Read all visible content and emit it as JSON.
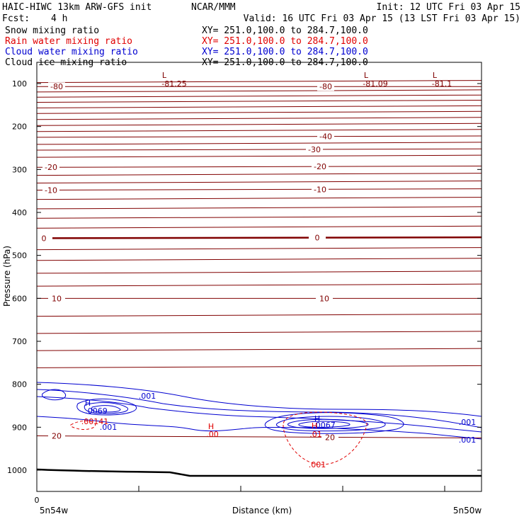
{
  "header": {
    "model_title": "HAIC-HIWC 13km ARW-GFS init",
    "org": "NCAR/MMM",
    "init": "Init: 12 UTC Fri 03 Apr 15",
    "fcst_label": "Fcst:",
    "fcst_value": "4 h",
    "valid": "Valid: 16 UTC Fri 03 Apr 15 (13 LST Fri 03 Apr 15)"
  },
  "fields": [
    {
      "name": "Snow mixing ratio",
      "xy": "XY= 251.0,100.0 to 284.7,100.0",
      "color": "#000000"
    },
    {
      "name": "Rain water mixing ratio",
      "xy": "XY= 251.0,100.0 to 284.7,100.0",
      "color": "#e00000"
    },
    {
      "name": "Cloud water mixing ratio",
      "xy": "XY= 251.0,100.0 to 284.7,100.0",
      "color": "#0000d0"
    },
    {
      "name": "Cloud ice mixing ratio",
      "xy": "XY= 251.0,100.0 to 284.7,100.0",
      "color": "#000000"
    }
  ],
  "colors": {
    "temperature": "#800000",
    "cloud_water": "#0000d0",
    "rain_water": "#e00000",
    "frame": "#000000"
  },
  "chart_data": {
    "type": "line",
    "xlabel": "Distance (km)",
    "ylabel": "Pressure (hPa)",
    "x_ticks": [
      "0"
    ],
    "x_end_labels": {
      "left": "5n54w",
      "right": "5n50w"
    },
    "ylim": [
      50,
      1050
    ],
    "y_ticks": [
      100,
      200,
      300,
      400,
      500,
      600,
      700,
      800,
      900,
      1000
    ],
    "y_tick_labels": [
      "100",
      "200",
      "300",
      "400",
      "500",
      "600",
      "700",
      "800",
      "900",
      "1000"
    ],
    "temperature_isotherms": [
      {
        "label": "-80",
        "p_left": 107,
        "p_right": 107
      },
      {
        "label": "-40",
        "p_left": 225,
        "p_right": 222
      },
      {
        "label": "-30",
        "p_left": 255,
        "p_right": 252
      },
      {
        "label": "-20",
        "p_left": 295,
        "p_right": 292
      },
      {
        "label": "-10",
        "p_left": 348,
        "p_right": 345
      },
      {
        "label": "0",
        "p_left": 460,
        "p_right": 458
      },
      {
        "label": "10",
        "p_left": 600,
        "p_right": 600
      },
      {
        "label": "20",
        "p_left": 920,
        "p_right": 925
      }
    ],
    "temperature_annotations": [
      {
        "text": "L",
        "kind": "low"
      },
      {
        "text": "-81.25",
        "kind": "low_value"
      },
      {
        "text": "L",
        "kind": "low"
      },
      {
        "text": "-81.09",
        "kind": "low_value"
      },
      {
        "text": "L",
        "kind": "low"
      },
      {
        "text": "-81.1",
        "kind": "low_value"
      }
    ],
    "cloud_water_labels": [
      ".001",
      ".001",
      ".001",
      ".001"
    ],
    "cloud_water_maxima": [
      {
        "text": "H",
        "value": ".0069"
      },
      {
        "text": "H",
        "value": ".0067"
      }
    ],
    "rain_water_labels": [
      ".00141",
      ".001",
      ".01"
    ],
    "rain_water_maxima": [
      {
        "text": "H",
        "value": ".00"
      },
      {
        "text": "H",
        "value": ".01"
      }
    ]
  }
}
